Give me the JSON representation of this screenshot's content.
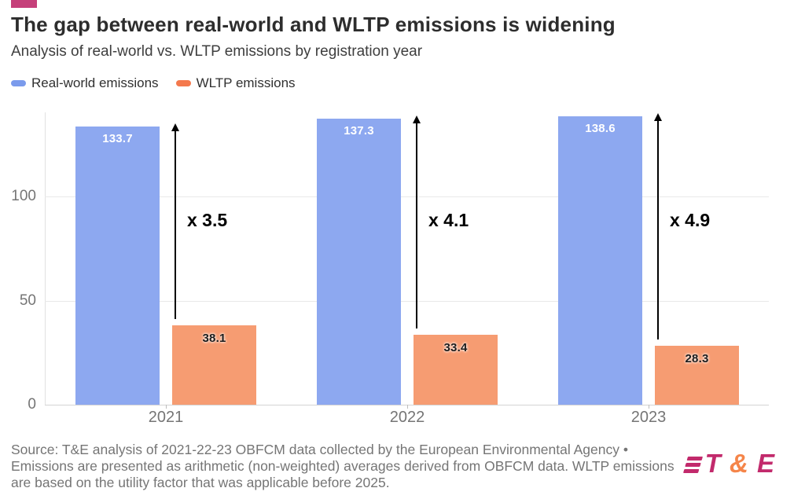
{
  "header": {
    "accent_color": "#c5407a",
    "title": "The gap between real-world and WLTP emissions is widening",
    "subtitle": "Analysis of real-world vs. WLTP emissions by registration year"
  },
  "legend": [
    {
      "label": "Real-world emissions",
      "color": "#7b9bec"
    },
    {
      "label": "WLTP emissions",
      "color": "#f4794d"
    }
  ],
  "chart_data": {
    "type": "bar",
    "categories": [
      "2021",
      "2022",
      "2023"
    ],
    "series": [
      {
        "name": "Real-world emissions",
        "color": "#8da8f0",
        "values": [
          133.7,
          137.3,
          138.6
        ]
      },
      {
        "name": "WLTP emissions",
        "color": "#f69c72",
        "values": [
          38.1,
          33.4,
          28.3
        ]
      }
    ],
    "annotations": [
      "x 3.5",
      "x 4.1",
      "x 4.9"
    ],
    "title": "The gap between real-world and WLTP emissions is widening",
    "subtitle": "Analysis of real-world vs. WLTP emissions by registration year",
    "xlabel": "",
    "ylabel": "",
    "yticks": [
      0,
      50,
      100
    ],
    "ylim": [
      0,
      140
    ],
    "grid": true,
    "legend_position": "top"
  },
  "footer": {
    "source_lines": [
      "Source: T&E analysis of 2021-22-23 OBFCM data collected by the European Environmental Agency •",
      "Emissions are presented as arithmetic (non-weighted) averages derived from OBFCM data. WLTP emissions",
      "are based on the utility factor that was applicable before 2025."
    ],
    "logo": {
      "t": "T",
      "amp": "&",
      "e": "E",
      "magenta": "#c22a6c",
      "orange": "#f58549"
    }
  }
}
